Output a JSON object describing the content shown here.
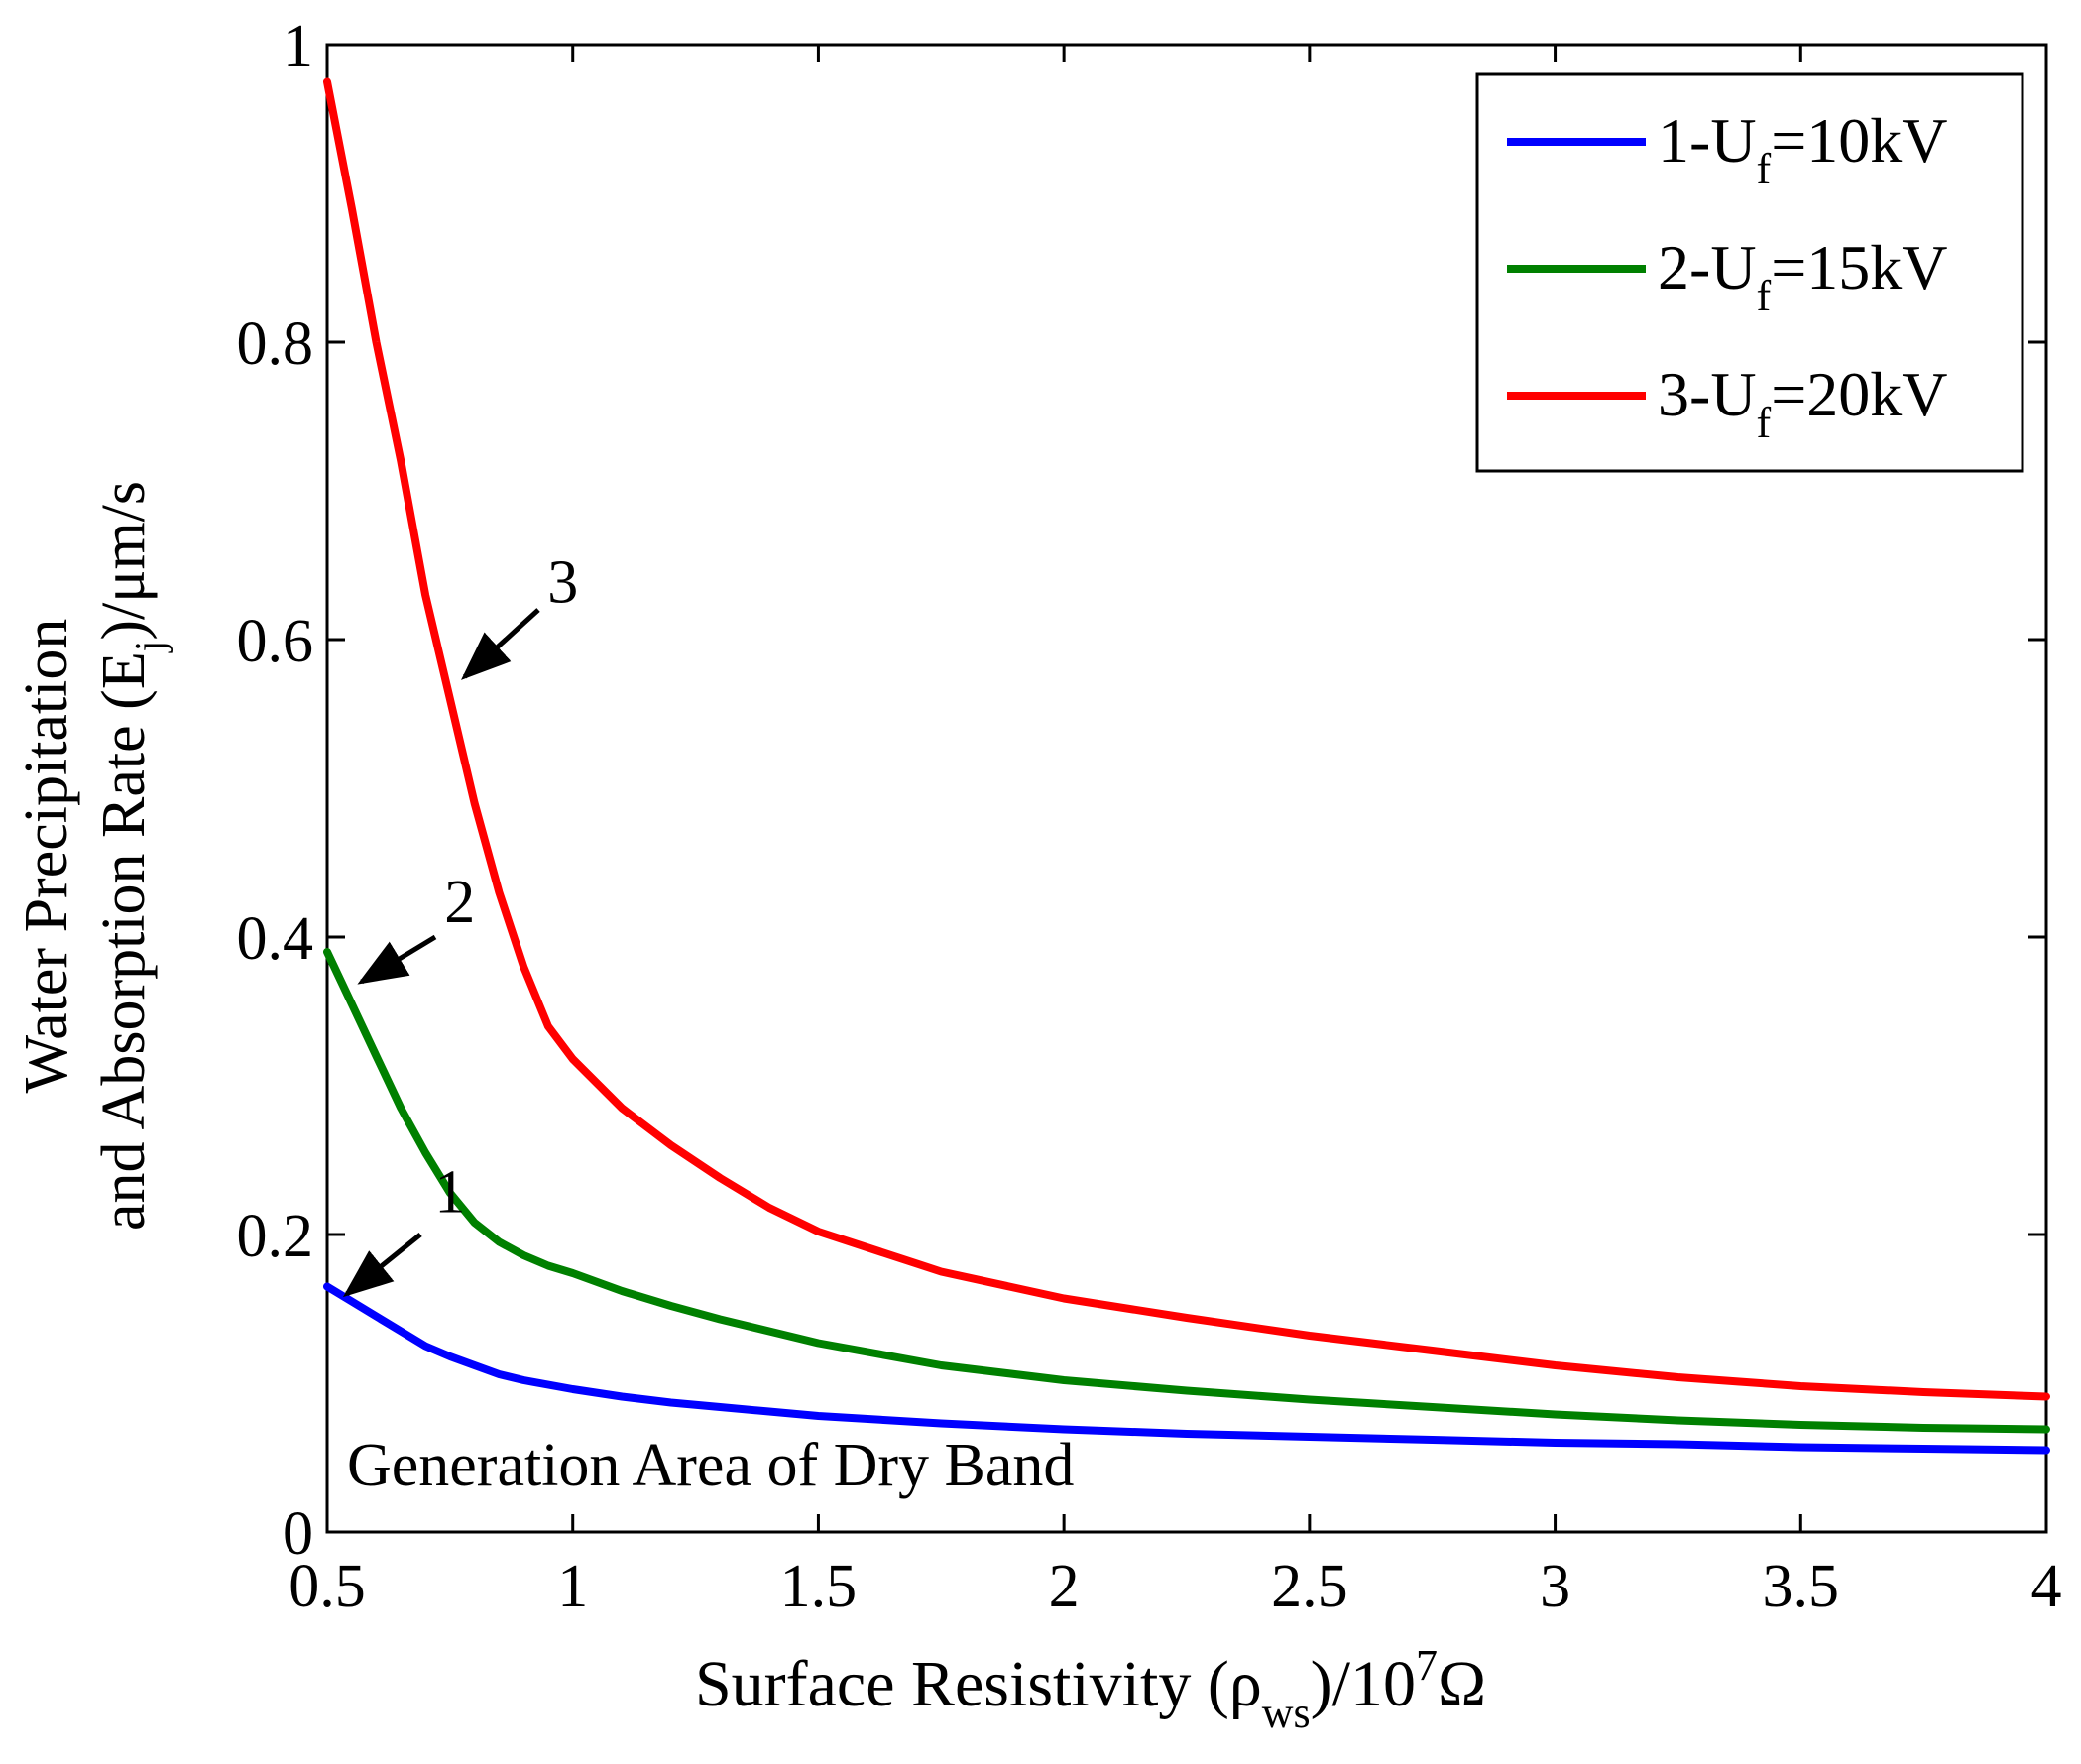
{
  "chart_data": {
    "type": "line",
    "title": "",
    "xlabel": {
      "text_main": "Surface Resistivity (ρ",
      "text_sub": "ws",
      "text_mid": ")/10",
      "text_sup": "7",
      "text_end": "Ω"
    },
    "ylabel": {
      "line1": "Water Precipitation",
      "line2_main": "and Absorption Rate (E",
      "line2_sub": "j",
      "line2_end": ")/μm/s"
    },
    "xlim": [
      0.5,
      4
    ],
    "ylim": [
      0,
      1
    ],
    "xticks": [
      0.5,
      1,
      1.5,
      2,
      2.5,
      3,
      3.5,
      4
    ],
    "xtick_labels": [
      "0.5",
      "1",
      "1.5",
      "2",
      "2.5",
      "3",
      "3.5",
      "4"
    ],
    "yticks": [
      0,
      0.2,
      0.4,
      0.6,
      0.8,
      1
    ],
    "ytick_labels": [
      "0",
      "0.2",
      "0.4",
      "0.6",
      "0.8",
      "1"
    ],
    "grid": false,
    "legend_position": "top-right",
    "annotation": "Generation Area of Dry Band",
    "series": [
      {
        "name": "1-Uf=10kV",
        "legend_prefix": "1-U",
        "legend_sub": "f",
        "legend_suffix": "=10kV",
        "color": "#0000ff",
        "label": "1",
        "x": [
          0.5,
          0.55,
          0.6,
          0.65,
          0.7,
          0.75,
          0.8,
          0.85,
          0.9,
          0.95,
          1.0,
          1.1,
          1.2,
          1.3,
          1.4,
          1.5,
          1.75,
          2.0,
          2.25,
          2.5,
          2.75,
          3.0,
          3.25,
          3.5,
          3.75,
          4.0
        ],
        "y": [
          0.165,
          0.155,
          0.145,
          0.135,
          0.125,
          0.118,
          0.112,
          0.106,
          0.102,
          0.099,
          0.096,
          0.091,
          0.087,
          0.084,
          0.081,
          0.078,
          0.073,
          0.069,
          0.066,
          0.064,
          0.062,
          0.06,
          0.059,
          0.057,
          0.056,
          0.055
        ]
      },
      {
        "name": "2-Uf=15kV",
        "legend_prefix": "2-U",
        "legend_sub": "f",
        "legend_suffix": "=15kV",
        "color": "#008000",
        "label": "2",
        "x": [
          0.5,
          0.55,
          0.6,
          0.65,
          0.7,
          0.75,
          0.8,
          0.85,
          0.9,
          0.95,
          1.0,
          1.1,
          1.2,
          1.3,
          1.4,
          1.5,
          1.75,
          2.0,
          2.25,
          2.5,
          2.75,
          3.0,
          3.25,
          3.5,
          3.75,
          4.0
        ],
        "y": [
          0.39,
          0.355,
          0.32,
          0.285,
          0.255,
          0.228,
          0.208,
          0.195,
          0.186,
          0.179,
          0.174,
          0.162,
          0.152,
          0.143,
          0.135,
          0.127,
          0.112,
          0.102,
          0.095,
          0.089,
          0.084,
          0.079,
          0.075,
          0.072,
          0.07,
          0.069
        ]
      },
      {
        "name": "3-Uf=20kV",
        "legend_prefix": "3-U",
        "legend_sub": "f",
        "legend_suffix": "=20kV",
        "color": "#ff0000",
        "label": "3",
        "x": [
          0.5,
          0.55,
          0.6,
          0.65,
          0.7,
          0.75,
          0.8,
          0.85,
          0.9,
          0.95,
          1.0,
          1.1,
          1.2,
          1.3,
          1.4,
          1.5,
          1.75,
          2.0,
          2.25,
          2.5,
          2.75,
          3.0,
          3.25,
          3.5,
          3.75,
          4.0
        ],
        "y": [
          0.975,
          0.89,
          0.8,
          0.72,
          0.63,
          0.56,
          0.49,
          0.43,
          0.38,
          0.34,
          0.318,
          0.285,
          0.26,
          0.238,
          0.218,
          0.202,
          0.175,
          0.157,
          0.144,
          0.132,
          0.122,
          0.112,
          0.104,
          0.098,
          0.094,
          0.091
        ]
      }
    ]
  }
}
